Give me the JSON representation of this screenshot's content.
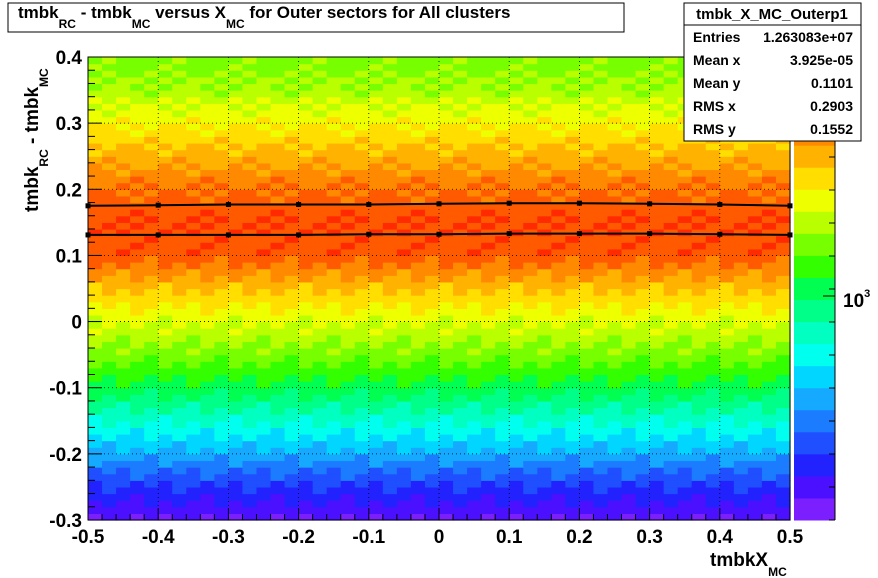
{
  "title": {
    "p1": "tmbk",
    "s1": "RC",
    "p2": " - tmbk",
    "s2": "MC",
    "p3": " versus X",
    "s3": "MC",
    "p4": " for Outer sectors for All clusters"
  },
  "stats": {
    "name": "tmbk_X_MC_Outerp1",
    "rows": [
      {
        "label": "Entries",
        "value": "1.263083e+07"
      },
      {
        "label": "Mean x",
        "value": "3.925e-05"
      },
      {
        "label": "Mean y",
        "value": "0.1101"
      },
      {
        "label": "RMS x",
        "value": "0.2903"
      },
      {
        "label": "RMS y",
        "value": "0.1552"
      }
    ]
  },
  "chart_data": {
    "type": "heatmap",
    "xlabel": {
      "main": "tmbkX",
      "sub": "MC"
    },
    "ylabel": {
      "p1": "tmbk",
      "s1": "RC",
      "p2": " - tmbk",
      "s2": "MC"
    },
    "xlim": [
      -0.5,
      0.5
    ],
    "ylim": [
      -0.3,
      0.4
    ],
    "x_ticks": [
      "-0.5",
      "-0.4",
      "-0.3",
      "-0.2",
      "-0.1",
      "0",
      "0.1",
      "0.2",
      "0.3",
      "0.4",
      "0.5"
    ],
    "y_ticks": [
      "-0.3",
      "-0.2",
      "-0.1",
      "0",
      "0.1",
      "0.2",
      "0.3",
      "0.4"
    ],
    "grid": true,
    "z_scale": "log",
    "z_label": {
      "base": "10",
      "exp": "3"
    },
    "density_profile": {
      "y": [
        -0.3,
        -0.25,
        -0.2,
        -0.15,
        -0.1,
        -0.05,
        0.0,
        0.05,
        0.1,
        0.15,
        0.2,
        0.25,
        0.3,
        0.35,
        0.4
      ],
      "level": [
        0.02,
        0.12,
        0.25,
        0.38,
        0.5,
        0.6,
        0.68,
        0.78,
        0.9,
        0.92,
        0.88,
        0.8,
        0.72,
        0.64,
        0.6
      ]
    },
    "series": [
      {
        "x": [
          -0.5,
          -0.4,
          -0.3,
          -0.2,
          -0.1,
          0.0,
          0.1,
          0.2,
          0.3,
          0.4,
          0.5
        ],
        "y": [
          0.175,
          0.176,
          0.177,
          0.177,
          0.177,
          0.178,
          0.179,
          0.179,
          0.178,
          0.177,
          0.175
        ]
      },
      {
        "x": [
          -0.5,
          -0.4,
          -0.3,
          -0.2,
          -0.1,
          0.0,
          0.1,
          0.2,
          0.3,
          0.4,
          0.5
        ],
        "y": [
          0.131,
          0.131,
          0.131,
          0.131,
          0.132,
          0.132,
          0.133,
          0.133,
          0.133,
          0.132,
          0.131
        ]
      }
    ]
  }
}
